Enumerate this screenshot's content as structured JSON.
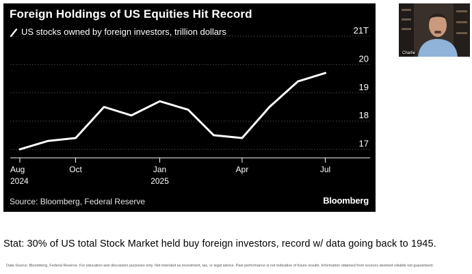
{
  "chart": {
    "title": "Foreign Holdings of US Equities Hit Record",
    "subtitle": "US stocks owned by foreign investors, trillion dollars",
    "source": "Source: Bloomberg, Federal Reserve",
    "brand": "Bloomberg"
  },
  "chart_data": {
    "type": "line",
    "title": "Foreign Holdings of US Equities Hit Record",
    "subtitle": "US stocks owned by foreign investors, trillion dollars",
    "xlabel": "",
    "ylabel": "",
    "ylim": [
      16.7,
      21
    ],
    "grid": true,
    "line_color": "#ffffff",
    "background": "#000000",
    "y_ticks": [
      {
        "value": 17,
        "label": "17"
      },
      {
        "value": 18,
        "label": "18"
      },
      {
        "value": 19,
        "label": "19"
      },
      {
        "value": 20,
        "label": "20"
      },
      {
        "value": 21,
        "label": "21T"
      }
    ],
    "x_ticks": [
      {
        "x": "2024-08-01",
        "label": "Aug",
        "sublabel": "2024"
      },
      {
        "x": "2024-10-01",
        "label": "Oct",
        "sublabel": ""
      },
      {
        "x": "2025-01-01",
        "label": "Jan",
        "sublabel": "2025"
      },
      {
        "x": "2025-04-01",
        "label": "Apr",
        "sublabel": ""
      },
      {
        "x": "2025-07-01",
        "label": "Jul",
        "sublabel": ""
      }
    ],
    "series": [
      {
        "points": [
          {
            "x": "2024-08-01",
            "y": 17.0
          },
          {
            "x": "2024-09-01",
            "y": 17.3
          },
          {
            "x": "2024-10-01",
            "y": 17.4
          },
          {
            "x": "2024-11-01",
            "y": 18.5
          },
          {
            "x": "2024-12-01",
            "y": 18.2
          },
          {
            "x": "2025-01-01",
            "y": 18.7
          },
          {
            "x": "2025-02-01",
            "y": 18.4
          },
          {
            "x": "2025-03-01",
            "y": 17.5
          },
          {
            "x": "2025-04-01",
            "y": 17.4
          },
          {
            "x": "2025-05-01",
            "y": 18.5
          },
          {
            "x": "2025-06-01",
            "y": 19.4
          },
          {
            "x": "2025-07-01",
            "y": 19.7
          }
        ]
      }
    ]
  },
  "webcam": {
    "participant_name": "Charlie"
  },
  "notes": {
    "stat": "Stat: 30% of US total Stock Market held buy foreign investors, record w/ data going back to 1945.",
    "disclaimer": "Data Source: Bloomberg, Federal Reserve. For education and discussion purposes only. Not intended as investment, tax, or legal advice. Past performance is not indicative of future results. Information obtained from sources deemed reliable not guaranteed."
  }
}
